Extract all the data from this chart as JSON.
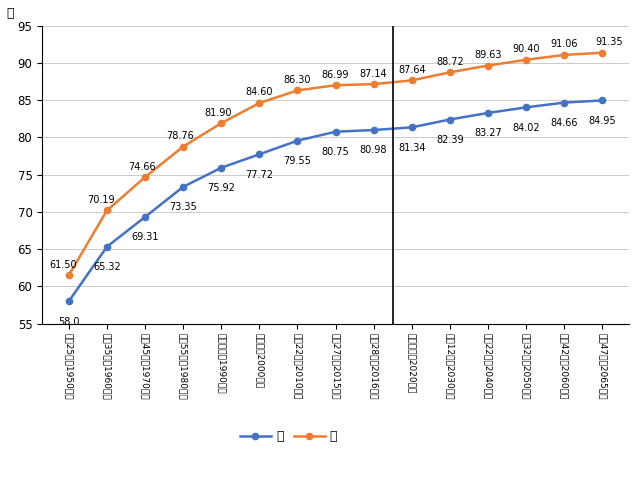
{
  "labels": [
    "昭和25年（1950年）",
    "昭和35年（1960年）",
    "昭和45年（1970年）",
    "昭和55年（1980年）",
    "平成２年（1990年）",
    "平成年（2000年）",
    "平成22年（2010年）",
    "平成27年（2015年）",
    "平成28年（2016年）",
    "令和２年（2020年）",
    "令和12年（2030年）",
    "令和22年（2040年）",
    "令和32年（2050年）",
    "令和42年（2060年）",
    "令和47年（2065年）"
  ],
  "male": [
    58.0,
    65.32,
    69.31,
    73.35,
    75.92,
    77.72,
    79.55,
    80.75,
    80.98,
    81.34,
    82.39,
    83.27,
    84.02,
    84.66,
    84.95
  ],
  "female": [
    61.5,
    70.19,
    74.66,
    78.76,
    81.9,
    84.6,
    86.3,
    86.99,
    87.14,
    87.64,
    88.72,
    89.63,
    90.4,
    91.06,
    91.35
  ],
  "male_color": "#4472C4",
  "female_color": "#ED7D31",
  "vline_index": 8.5,
  "ylim_min": 55.0,
  "ylim_max": 95.0,
  "yticks": [
    55.0,
    60.0,
    65.0,
    70.0,
    75.0,
    80.0,
    85.0,
    90.0,
    95.0
  ],
  "ylabel": "年",
  "legend_male": "男",
  "legend_female": "女",
  "background_color": "#FFFFFF",
  "grid_color": "#CCCCCC",
  "male_label_format": [
    "58.0",
    "65.32",
    "69.31",
    "73.35",
    "75.92",
    "77.72",
    "79.55",
    "80.75",
    "80.98",
    "81.34",
    "82.39",
    "83.27",
    "84.02",
    "84.66",
    "84.95"
  ],
  "female_label_format": [
    "61.50",
    "70.19",
    "74.66",
    "78.76",
    "81.90",
    "84.60",
    "86.30",
    "86.99",
    "87.14",
    "87.64",
    "88.72",
    "89.63",
    "90.40",
    "91.06",
    "91.35"
  ]
}
